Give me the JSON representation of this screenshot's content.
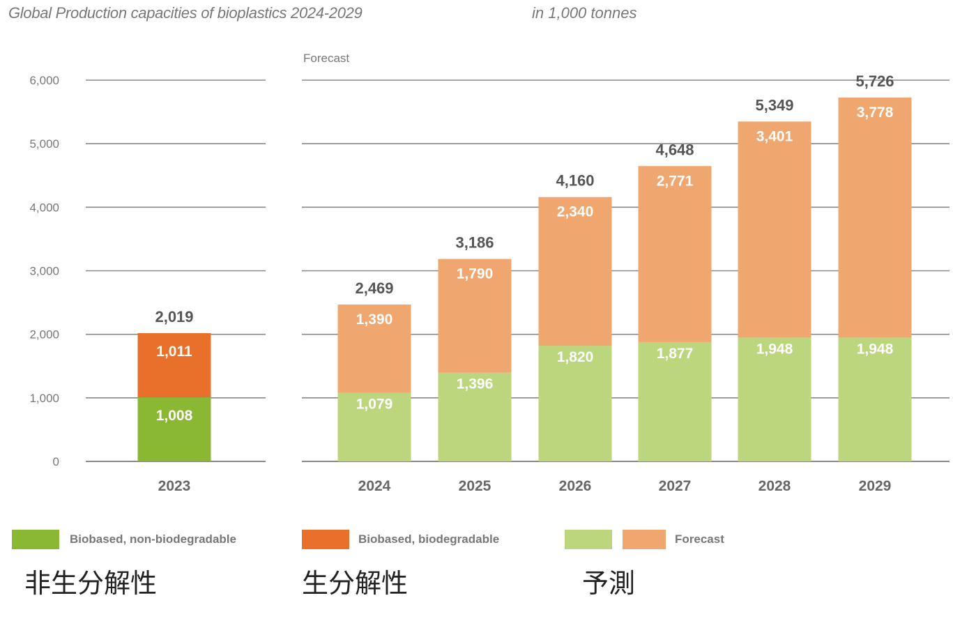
{
  "title": "Global Production capacities of bioplastics 2024-2029",
  "unit": "in 1,000 tonnes",
  "forecast_label": "Forecast",
  "colors": {
    "non_biodegradable": "#8ab833",
    "biodegradable": "#e8702a",
    "forecast_non_biodegradable": "#bcd67e",
    "forecast_biodegradable": "#f0a66f",
    "grid": "#888888",
    "value_text": "#ffffff",
    "total_text": "#555555"
  },
  "chart_data": {
    "type": "bar",
    "stacked": true,
    "title": "Global Production capacities of bioplastics 2024-2029",
    "unit": "in 1,000 tonnes",
    "categories": [
      "2023",
      "2024",
      "2025",
      "2026",
      "2027",
      "2028",
      "2029"
    ],
    "series": [
      {
        "name": "Biobased, non-biodegradable",
        "values": [
          1008,
          1079,
          1396,
          1820,
          1877,
          1948,
          1948
        ]
      },
      {
        "name": "Biobased, biodegradable",
        "values": [
          1011,
          1390,
          1790,
          2340,
          2771,
          3401,
          3778
        ]
      }
    ],
    "value_labels": {
      "non_biodegradable": [
        "1,008",
        "1,079",
        "1,396",
        "1,820",
        "1,877",
        "1,948",
        "1,948"
      ],
      "biodegradable": [
        "1,011",
        "1,390",
        "1,790",
        "2,340",
        "2,771",
        "3,401",
        "3,778"
      ]
    },
    "totals": [
      "2,019",
      "2,469",
      "3,186",
      "4,160",
      "4,648",
      "5,349",
      "5,726"
    ],
    "forecast_categories": [
      "2024",
      "2025",
      "2026",
      "2027",
      "2028",
      "2029"
    ],
    "yticks": [
      "0",
      "1,000",
      "2,000",
      "3,000",
      "4,000",
      "5,000",
      "6,000"
    ],
    "ytick_values": [
      0,
      1000,
      2000,
      3000,
      4000,
      5000,
      6000
    ],
    "ylim": [
      0,
      6000
    ],
    "grid": true,
    "legend_position": "bottom"
  },
  "legend": {
    "items": [
      {
        "label": "Biobased, non-biodegradable"
      },
      {
        "label": "Biobased, biodegradable"
      },
      {
        "label": "Forecast"
      }
    ]
  },
  "annotations_jp": {
    "non_biodegradable": "非生分解性",
    "biodegradable": "生分解性",
    "forecast": "予測"
  }
}
